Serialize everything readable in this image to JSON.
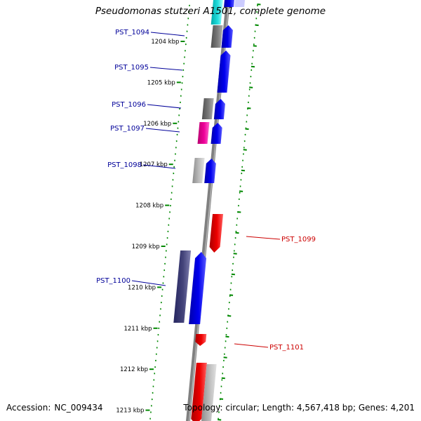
{
  "title": "Pseudomonas stutzeri A1501, complete genome",
  "footer": {
    "accession_label": "Accession:",
    "accession_value": "NC_009434",
    "topology_text": "Topology: circular; Length: 4,567,418 bp; Genes: 4,201"
  },
  "colors": {
    "forward_strand": "#0000ee",
    "reverse_strand": "#ee0000",
    "backbone": "#808080",
    "tick": "#008800",
    "forward_label": "#000099",
    "reverse_label": "#cc0000"
  },
  "ticks": [
    {
      "label": "1204 kbp"
    },
    {
      "label": "1205 kbp"
    },
    {
      "label": "1206 kbp"
    },
    {
      "label": "1207 kbp"
    },
    {
      "label": "1208 kbp"
    },
    {
      "label": "1209 kbp"
    },
    {
      "label": "1210 kbp"
    },
    {
      "label": "1211 kbp"
    },
    {
      "label": "1212 kbp"
    },
    {
      "label": "1213 kbp"
    }
  ],
  "genes": [
    {
      "name": "PST_1094",
      "strand": "forward",
      "labeled": true
    },
    {
      "name": "PST_1095",
      "strand": "forward",
      "labeled": true
    },
    {
      "name": "PST_1096",
      "strand": "forward",
      "labeled": true
    },
    {
      "name": "PST_1097",
      "strand": "forward",
      "labeled": true
    },
    {
      "name": "PST_1098",
      "strand": "forward",
      "labeled": true
    },
    {
      "name": "PST_1099",
      "strand": "reverse",
      "labeled": true
    },
    {
      "name": "PST_1100",
      "strand": "forward",
      "labeled": true
    },
    {
      "name": "PST_1101",
      "strand": "reverse",
      "labeled": true
    }
  ]
}
